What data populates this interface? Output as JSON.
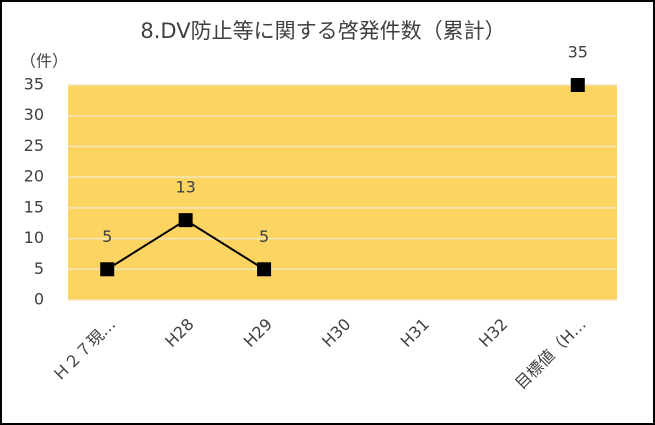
{
  "chart_data": {
    "type": "line",
    "title": "8.DV防止等に関する啓発件数（累計）",
    "y_label": "（件）",
    "categories": [
      "Ｈ２７現…",
      "H28",
      "H29",
      "H30",
      "H31",
      "H32",
      "目標値（H…"
    ],
    "values": [
      5,
      13,
      5,
      null,
      null,
      null,
      35
    ],
    "color": "#000000",
    "plot_background": "#fcd462",
    "ylim": [
      0,
      35
    ],
    "yticks": [
      0,
      5,
      10,
      15,
      20,
      25,
      30,
      35
    ],
    "grid": true
  }
}
